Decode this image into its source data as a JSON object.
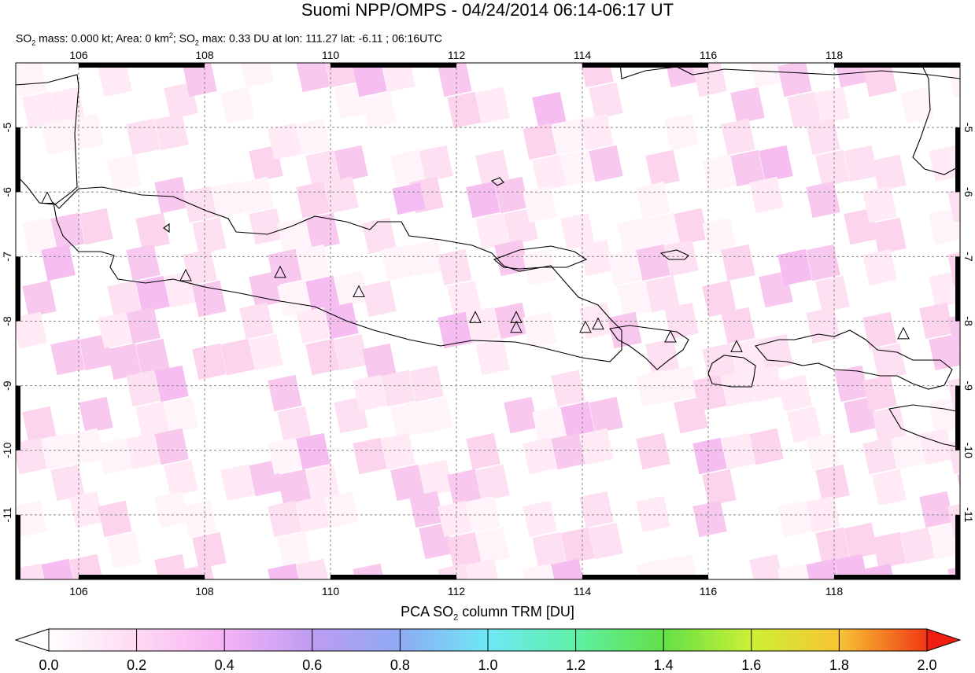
{
  "title": "Suomi NPP/OMPS - 04/24/2014 06:14-06:17 UT",
  "subtitle": {
    "p1": "SO",
    "sub1": "2",
    "p2": " mass: 0.000 kt; Area: 0 km",
    "sup1": "2",
    "p3": "; SO",
    "sub2": "2",
    "p4": " max: 0.33 DU at lon: 111.27 lat: -6.11 ; 06:16UTC"
  },
  "map": {
    "lon_range": [
      105,
      120
    ],
    "lat_range": [
      -12,
      -4
    ],
    "lon_ticks": [
      "106",
      "108",
      "110",
      "112",
      "114",
      "116",
      "118"
    ],
    "lat_ticks": [
      "-5",
      "-6",
      "-7",
      "-8",
      "-9",
      "-10",
      "-11"
    ],
    "volcano_markers": [
      [
        105.5,
        -6.1
      ],
      [
        107.7,
        -7.3
      ],
      [
        109.2,
        -7.25
      ],
      [
        110.45,
        -7.55
      ],
      [
        112.3,
        -7.95
      ],
      [
        112.95,
        -7.95
      ],
      [
        112.95,
        -8.1
      ],
      [
        114.05,
        -8.1
      ],
      [
        114.25,
        -8.05
      ],
      [
        115.4,
        -8.25
      ],
      [
        116.45,
        -8.4
      ],
      [
        119.1,
        -8.2
      ]
    ],
    "so2_max": {
      "lon": 111.27,
      "lat": -6.11,
      "value_du": 0.33
    }
  },
  "colorbar": {
    "title_p1": "PCA SO",
    "title_sub": "2",
    "title_p2": " column TRM [DU]",
    "tick_labels": [
      "0.0",
      "0.2",
      "0.4",
      "0.6",
      "0.8",
      "1.0",
      "1.2",
      "1.4",
      "1.6",
      "1.8",
      "2.0"
    ],
    "colors": [
      "#ffffff",
      "#ffd6f0",
      "#f2b0f2",
      "#b898f2",
      "#8aa8f2",
      "#66e6f2",
      "#5cf0a0",
      "#60e040",
      "#c8f030",
      "#f8c030",
      "#f87830",
      "#f02010"
    ]
  }
}
